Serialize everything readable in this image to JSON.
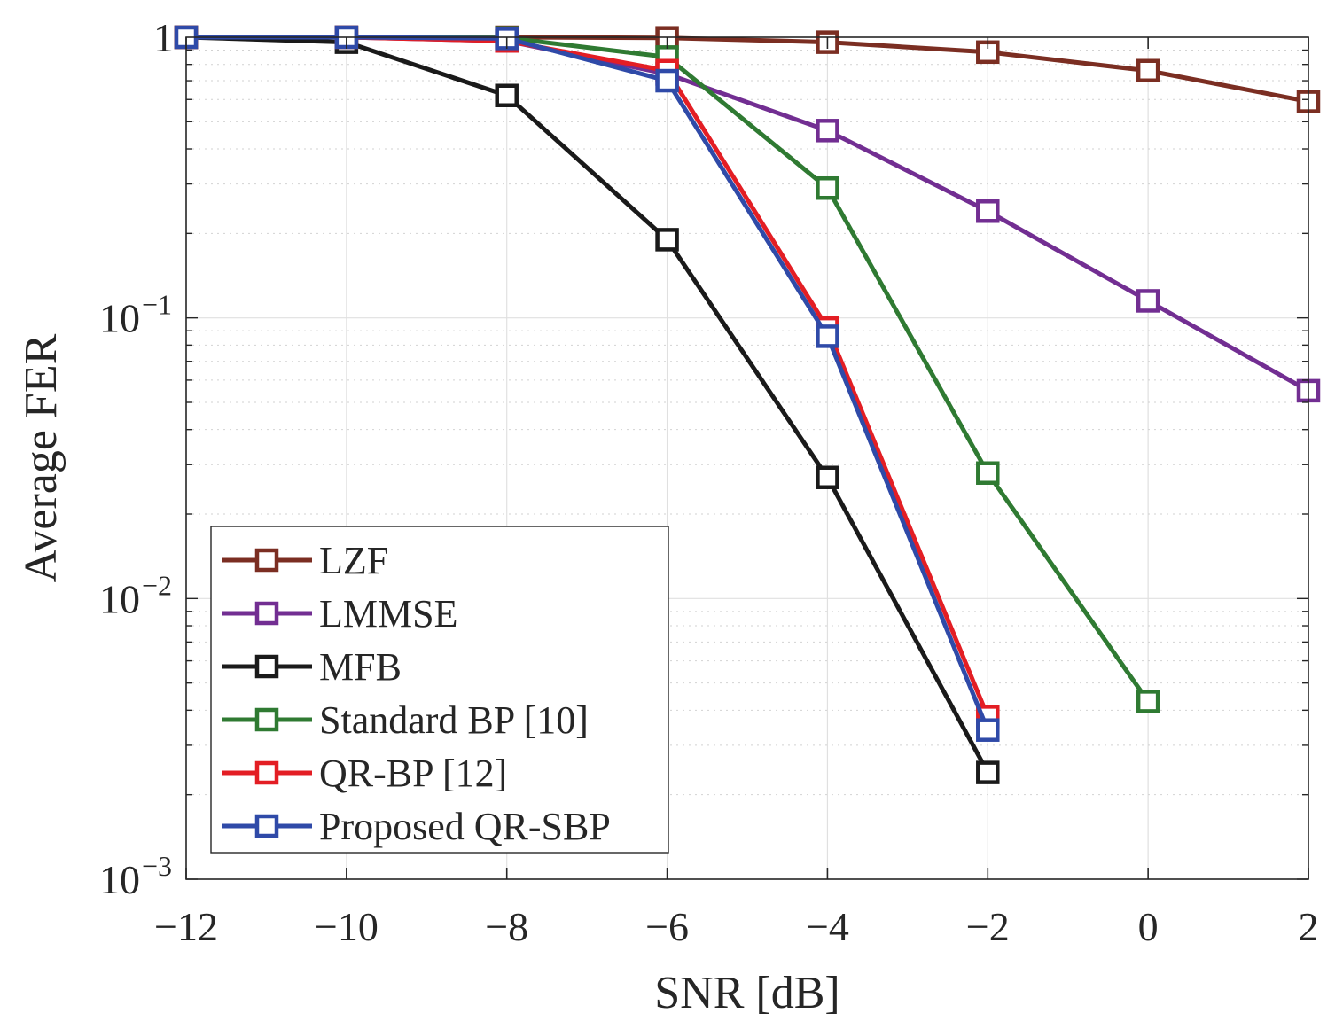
{
  "chart_data": {
    "type": "line",
    "title": "",
    "xlabel": "SNR [dB]",
    "ylabel": "Average FER",
    "xlim": [
      -12,
      2
    ],
    "ylim": [
      0.001,
      1
    ],
    "yscale": "log",
    "grid": true,
    "legend_position": "bottom-left",
    "x_ticks": [
      {
        "value": -12,
        "label": "−12"
      },
      {
        "value": -10,
        "label": "−10"
      },
      {
        "value": -8,
        "label": "−8"
      },
      {
        "value": -6,
        "label": "−6"
      },
      {
        "value": -4,
        "label": "−4"
      },
      {
        "value": -2,
        "label": "−2"
      },
      {
        "value": 0,
        "label": "0"
      },
      {
        "value": 2,
        "label": "2"
      }
    ],
    "y_ticks": [
      {
        "value": 1,
        "base": "1",
        "exp": ""
      },
      {
        "value": 0.1,
        "base": "10",
        "exp": "−1"
      },
      {
        "value": 0.01,
        "base": "10",
        "exp": "−2"
      },
      {
        "value": 0.001,
        "base": "10",
        "exp": "−3"
      }
    ],
    "series": [
      {
        "name": "LZF",
        "color": "#7b2e22",
        "x": [
          -12,
          -10,
          -8,
          -6,
          -4,
          -2,
          0,
          2
        ],
        "y": [
          1.0,
          1.0,
          1.0,
          0.995,
          0.96,
          0.885,
          0.76,
          0.59
        ]
      },
      {
        "name": "LMMSE",
        "color": "#722e92",
        "x": [
          -12,
          -10,
          -8,
          -6,
          -4,
          -2,
          0,
          2
        ],
        "y": [
          1.0,
          1.0,
          0.97,
          0.74,
          0.465,
          0.24,
          0.115,
          0.055
        ]
      },
      {
        "name": "MFB",
        "color": "#1a1a1a",
        "x": [
          -12,
          -10,
          -8,
          -6,
          -4,
          -2
        ],
        "y": [
          1.0,
          0.96,
          0.62,
          0.19,
          0.027,
          0.0024
        ]
      },
      {
        "name": "Standard BP [10]",
        "color": "#2f7a32",
        "x": [
          -12,
          -10,
          -8,
          -6,
          -4,
          -2,
          0
        ],
        "y": [
          1.0,
          1.0,
          0.995,
          0.85,
          0.29,
          0.028,
          0.0043
        ]
      },
      {
        "name": "QR-BP [12]",
        "color": "#e31e24",
        "x": [
          -12,
          -10,
          -8,
          -6,
          -4,
          -2
        ],
        "y": [
          1.0,
          1.0,
          0.97,
          0.76,
          0.092,
          0.0038
        ]
      },
      {
        "name": "Proposed QR-SBP",
        "color": "#2f4aa8",
        "x": [
          -12,
          -10,
          -8,
          -6,
          -4,
          -2
        ],
        "y": [
          1.0,
          1.0,
          0.99,
          0.7,
          0.086,
          0.0034
        ]
      }
    ]
  }
}
